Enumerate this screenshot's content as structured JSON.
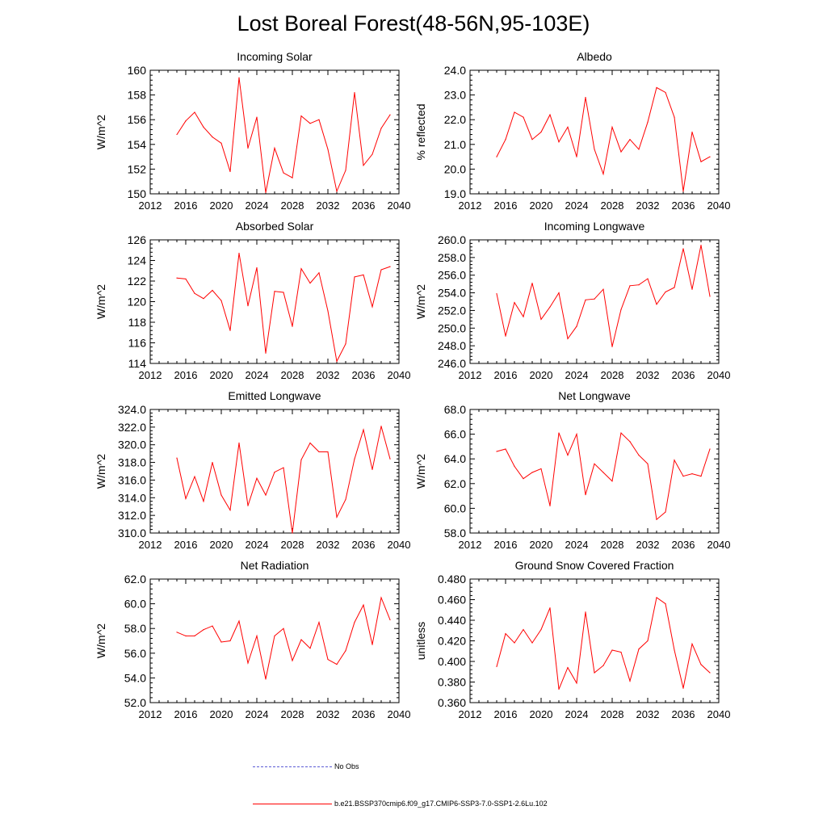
{
  "title": "Lost Boreal Forest(48-56N,95-103E)",
  "xlim": [
    2012,
    2040
  ],
  "xticks": [
    "2012",
    "2016",
    "2020",
    "2024",
    "2028",
    "2032",
    "2036",
    "2040"
  ],
  "legend": [
    {
      "label": "No Obs",
      "color": "#5b5bd6",
      "style": "dashed"
    },
    {
      "label": "b.e21.BSSP370cmip6.f09_g17.CMIP6-SSP3-7.0-SSP1-2.6Lu.102",
      "color": "#ff0000",
      "style": "solid"
    }
  ],
  "chart_data": [
    {
      "type": "line",
      "title": "Incoming Solar",
      "ylabel": "W/m^2",
      "ylim": [
        150,
        160
      ],
      "yticks": [
        "150",
        "152",
        "154",
        "156",
        "158",
        "160"
      ],
      "color": "#ff0000",
      "x": [
        2015,
        2016,
        2017,
        2018,
        2019,
        2020,
        2021,
        2022,
        2023,
        2024,
        2025,
        2026,
        2027,
        2028,
        2029,
        2030,
        2031,
        2032,
        2033,
        2034,
        2035,
        2036,
        2037,
        2038,
        2039
      ],
      "values": [
        154.8,
        155.9,
        156.6,
        155.4,
        154.6,
        154.1,
        151.8,
        159.4,
        153.7,
        156.2,
        150.1,
        153.7,
        151.7,
        151.3,
        156.3,
        155.7,
        156.0,
        153.6,
        150.2,
        151.9,
        158.2,
        152.3,
        153.2,
        155.3,
        156.4
      ]
    },
    {
      "type": "line",
      "title": "Albedo",
      "ylabel": "% reflected",
      "ylim": [
        19.0,
        24.0
      ],
      "yticks": [
        "19.0",
        "20.0",
        "21.0",
        "22.0",
        "23.0",
        "24.0"
      ],
      "color": "#ff0000",
      "x": [
        2015,
        2016,
        2017,
        2018,
        2019,
        2020,
        2021,
        2022,
        2023,
        2024,
        2025,
        2026,
        2027,
        2028,
        2029,
        2030,
        2031,
        2032,
        2033,
        2034,
        2035,
        2036,
        2037,
        2038,
        2039
      ],
      "values": [
        20.5,
        21.2,
        22.3,
        22.1,
        21.2,
        21.5,
        22.2,
        21.1,
        21.7,
        20.5,
        22.9,
        20.8,
        19.8,
        21.7,
        20.7,
        21.2,
        20.8,
        21.9,
        23.3,
        23.1,
        22.1,
        19.1,
        21.5,
        20.3,
        20.5
      ]
    },
    {
      "type": "line",
      "title": "Absorbed Solar",
      "ylabel": "W/m^2",
      "ylim": [
        114,
        126
      ],
      "yticks": [
        "114",
        "116",
        "118",
        "120",
        "122",
        "124",
        "126"
      ],
      "color": "#ff0000",
      "x": [
        2015,
        2016,
        2017,
        2018,
        2019,
        2020,
        2021,
        2022,
        2023,
        2024,
        2025,
        2026,
        2027,
        2028,
        2029,
        2030,
        2031,
        2032,
        2033,
        2034,
        2035,
        2036,
        2037,
        2038,
        2039
      ],
      "values": [
        122.3,
        122.2,
        120.8,
        120.3,
        121.1,
        120.1,
        117.2,
        124.7,
        119.6,
        123.3,
        115.0,
        121.0,
        120.9,
        117.6,
        123.2,
        121.8,
        122.8,
        119.1,
        114.2,
        115.9,
        122.4,
        122.6,
        119.5,
        123.1,
        123.4
      ]
    },
    {
      "type": "line",
      "title": "Incoming Longwave",
      "ylabel": "W/m^2",
      "ylim": [
        246.0,
        260.0
      ],
      "yticks": [
        "246.0",
        "248.0",
        "250.0",
        "252.0",
        "254.0",
        "256.0",
        "258.0",
        "260.0"
      ],
      "color": "#ff0000",
      "x": [
        2015,
        2016,
        2017,
        2018,
        2019,
        2020,
        2021,
        2022,
        2023,
        2024,
        2025,
        2026,
        2027,
        2028,
        2029,
        2030,
        2031,
        2032,
        2033,
        2034,
        2035,
        2036,
        2037,
        2038,
        2039
      ],
      "values": [
        253.9,
        249.1,
        252.9,
        251.3,
        255.1,
        251.0,
        252.4,
        254.0,
        248.8,
        250.2,
        253.2,
        253.3,
        254.4,
        247.9,
        252.1,
        254.8,
        254.9,
        255.6,
        252.7,
        254.1,
        254.6,
        259.0,
        254.4,
        259.4,
        253.6
      ]
    },
    {
      "type": "line",
      "title": "Emitted Longwave",
      "ylabel": "W/m^2",
      "ylim": [
        310.0,
        324.0
      ],
      "yticks": [
        "310.0",
        "312.0",
        "314.0",
        "316.0",
        "318.0",
        "320.0",
        "322.0",
        "324.0"
      ],
      "color": "#ff0000",
      "x": [
        2015,
        2016,
        2017,
        2018,
        2019,
        2020,
        2021,
        2022,
        2023,
        2024,
        2025,
        2026,
        2027,
        2028,
        2029,
        2030,
        2031,
        2032,
        2033,
        2034,
        2035,
        2036,
        2037,
        2038,
        2039
      ],
      "values": [
        318.5,
        313.9,
        316.4,
        313.6,
        318.0,
        314.3,
        312.6,
        320.2,
        313.1,
        316.2,
        314.3,
        316.9,
        317.4,
        310.0,
        318.3,
        320.2,
        319.2,
        319.2,
        311.8,
        313.8,
        318.4,
        321.7,
        317.2,
        322.1,
        318.4
      ]
    },
    {
      "type": "line",
      "title": "Net Longwave",
      "ylabel": "W/m^2",
      "ylim": [
        58.0,
        68.0
      ],
      "yticks": [
        "58.0",
        "60.0",
        "62.0",
        "64.0",
        "66.0",
        "68.0"
      ],
      "color": "#ff0000",
      "x": [
        2015,
        2016,
        2017,
        2018,
        2019,
        2020,
        2021,
        2022,
        2023,
        2024,
        2025,
        2026,
        2027,
        2028,
        2029,
        2030,
        2031,
        2032,
        2033,
        2034,
        2035,
        2036,
        2037,
        2038,
        2039
      ],
      "values": [
        64.6,
        64.8,
        63.4,
        62.4,
        62.9,
        63.2,
        60.2,
        66.1,
        64.3,
        66.0,
        61.1,
        63.6,
        62.9,
        62.2,
        66.1,
        65.4,
        64.3,
        63.6,
        59.1,
        59.7,
        63.9,
        62.6,
        62.8,
        62.6,
        64.8
      ]
    },
    {
      "type": "line",
      "title": "Net Radiation",
      "ylabel": "W/m^2",
      "ylim": [
        52.0,
        62.0
      ],
      "yticks": [
        "52.0",
        "54.0",
        "56.0",
        "58.0",
        "60.0",
        "62.0"
      ],
      "color": "#ff0000",
      "x": [
        2015,
        2016,
        2017,
        2018,
        2019,
        2020,
        2021,
        2022,
        2023,
        2024,
        2025,
        2026,
        2027,
        2028,
        2029,
        2030,
        2031,
        2032,
        2033,
        2034,
        2035,
        2036,
        2037,
        2038,
        2039
      ],
      "values": [
        57.7,
        57.4,
        57.4,
        57.9,
        58.2,
        56.9,
        57.0,
        58.6,
        55.2,
        57.4,
        53.9,
        57.4,
        58.0,
        55.4,
        57.1,
        56.4,
        58.5,
        55.5,
        55.1,
        56.2,
        58.5,
        59.9,
        56.7,
        60.5,
        58.7
      ]
    },
    {
      "type": "line",
      "title": "Ground Snow Covered Fraction",
      "ylabel": "unitless",
      "ylim": [
        0.36,
        0.48
      ],
      "yticks": [
        "0.360",
        "0.380",
        "0.400",
        "0.420",
        "0.440",
        "0.460",
        "0.480"
      ],
      "color": "#ff0000",
      "x": [
        2015,
        2016,
        2017,
        2018,
        2019,
        2020,
        2021,
        2022,
        2023,
        2024,
        2025,
        2026,
        2027,
        2028,
        2029,
        2030,
        2031,
        2032,
        2033,
        2034,
        2035,
        2036,
        2037,
        2038,
        2039
      ],
      "values": [
        0.395,
        0.427,
        0.418,
        0.431,
        0.418,
        0.431,
        0.452,
        0.373,
        0.394,
        0.379,
        0.448,
        0.389,
        0.396,
        0.411,
        0.409,
        0.381,
        0.412,
        0.42,
        0.462,
        0.456,
        0.411,
        0.374,
        0.417,
        0.397,
        0.389
      ]
    }
  ]
}
